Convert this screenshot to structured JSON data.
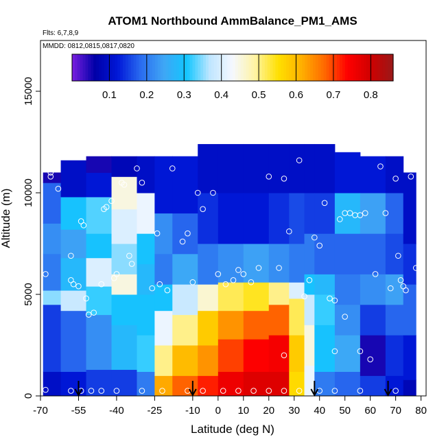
{
  "chart_data": {
    "type": "heatmap",
    "title": "ATOM1 Northbound AmmBalance_PM1_AMS",
    "flights_note": "Flts: 6,7,8,9",
    "dates_note": "MMDD: 0812,0815,0817,0820",
    "xlabel": "Latitude (deg N)",
    "ylabel": "Altitude (m)",
    "xlim": [
      -70,
      82
    ],
    "ylim": [
      0,
      17500
    ],
    "x_ticks": [
      -70,
      -55,
      -40,
      -25,
      -10,
      0,
      10,
      20,
      30,
      40,
      50,
      60,
      70,
      80
    ],
    "x_tick_labels": [
      "-70",
      "-55",
      "-40",
      "-25",
      "-10",
      "0",
      "10",
      "20",
      "30",
      "40",
      "50",
      "60",
      "70",
      "80"
    ],
    "y_ticks": [
      0,
      5000,
      10000,
      15000
    ],
    "y_tick_labels": [
      "0",
      "5000",
      "10000",
      "15000"
    ],
    "colorbar": {
      "range": [
        0,
        0.86
      ],
      "ticks": [
        0.1,
        0.2,
        0.3,
        0.4,
        0.5,
        0.6,
        0.7,
        0.8
      ],
      "tick_labels": [
        "0.1",
        "0.2",
        "0.3",
        "0.4",
        "0.5",
        "0.6",
        "0.7",
        "0.8"
      ],
      "colors": [
        "#7a1fe0",
        "#0000a8",
        "#0018d8",
        "#2a6cf0",
        "#3fa6f5",
        "#12c6ff",
        "#bfe6ff",
        "#f5f8ff",
        "#fff3a0",
        "#ffe000",
        "#ffb000",
        "#ff6a00",
        "#ff0000",
        "#d00000",
        "#9a1818"
      ]
    },
    "grid": false,
    "profile_latitudes": [
      -55,
      -10,
      38,
      67
    ],
    "data_columns": [
      {
        "lat0": -69,
        "lat1": -62,
        "ztop": 11000,
        "bands": [
          [
            0,
            1200,
            0.1
          ],
          [
            1200,
            4500,
            0.15
          ],
          [
            4500,
            5200,
            0.35
          ],
          [
            5200,
            7000,
            0.2
          ],
          [
            7000,
            8500,
            0.22
          ],
          [
            8500,
            10500,
            0.18
          ],
          [
            10500,
            11000,
            0.05
          ]
        ]
      },
      {
        "lat0": -62,
        "lat1": -52,
        "ztop": 11600,
        "bands": [
          [
            0,
            1200,
            0.12
          ],
          [
            1200,
            4200,
            0.18
          ],
          [
            4200,
            5200,
            0.38
          ],
          [
            5200,
            6800,
            0.28
          ],
          [
            6800,
            8200,
            0.24
          ],
          [
            8200,
            9800,
            0.3
          ],
          [
            9800,
            11600,
            0.1
          ]
        ]
      },
      {
        "lat0": -52,
        "lat1": -42,
        "ztop": 11800,
        "bands": [
          [
            0,
            1300,
            0.15
          ],
          [
            1300,
            4000,
            0.22
          ],
          [
            4000,
            5400,
            0.32
          ],
          [
            5400,
            6800,
            0.4
          ],
          [
            6800,
            8000,
            0.3
          ],
          [
            8000,
            9800,
            0.33
          ],
          [
            9800,
            11000,
            0.12
          ],
          [
            11000,
            11800,
            0.05
          ]
        ]
      },
      {
        "lat0": -42,
        "lat1": -32,
        "ztop": 11800,
        "bands": [
          [
            0,
            1300,
            0.15
          ],
          [
            1300,
            3500,
            0.28
          ],
          [
            3500,
            5000,
            0.3
          ],
          [
            5000,
            6000,
            0.45
          ],
          [
            6000,
            7500,
            0.35
          ],
          [
            7500,
            9200,
            0.4
          ],
          [
            9200,
            10800,
            0.45
          ],
          [
            10800,
            11800,
            0.08
          ]
        ]
      },
      {
        "lat0": -32,
        "lat1": -25,
        "ztop": 11800,
        "bands": [
          [
            0,
            1200,
            0.2
          ],
          [
            1200,
            3000,
            0.32
          ],
          [
            3000,
            5000,
            0.3
          ],
          [
            5000,
            6500,
            0.28
          ],
          [
            6500,
            8000,
            0.3
          ],
          [
            8000,
            10000,
            0.42
          ],
          [
            10000,
            11800,
            0.1
          ]
        ]
      },
      {
        "lat0": -25,
        "lat1": -18,
        "ztop": 11800,
        "bands": [
          [
            0,
            1000,
            0.62
          ],
          [
            1000,
            2500,
            0.5
          ],
          [
            2500,
            4200,
            0.42
          ],
          [
            4200,
            5500,
            0.3
          ],
          [
            5500,
            7000,
            0.2
          ],
          [
            7000,
            9000,
            0.22
          ],
          [
            9000,
            11800,
            0.12
          ]
        ]
      },
      {
        "lat0": -18,
        "lat1": -8,
        "ztop": 11800,
        "bands": [
          [
            0,
            1000,
            0.68
          ],
          [
            1000,
            2500,
            0.6
          ],
          [
            2500,
            4000,
            0.5
          ],
          [
            4000,
            5500,
            0.38
          ],
          [
            5500,
            7000,
            0.25
          ],
          [
            7000,
            9000,
            0.18
          ],
          [
            9000,
            11800,
            0.12
          ]
        ]
      },
      {
        "lat0": -8,
        "lat1": 0,
        "ztop": 12400,
        "bands": [
          [
            0,
            1000,
            0.72
          ],
          [
            1000,
            2500,
            0.64
          ],
          [
            2500,
            4200,
            0.58
          ],
          [
            4200,
            5500,
            0.46
          ],
          [
            5500,
            7500,
            0.2
          ],
          [
            7500,
            10000,
            0.14
          ],
          [
            10000,
            12400,
            0.1
          ]
        ]
      },
      {
        "lat0": 0,
        "lat1": 10,
        "ztop": 12400,
        "bands": [
          [
            0,
            1200,
            0.76
          ],
          [
            1200,
            2800,
            0.7
          ],
          [
            2800,
            4200,
            0.64
          ],
          [
            4200,
            5600,
            0.52
          ],
          [
            5600,
            7500,
            0.22
          ],
          [
            7500,
            10000,
            0.12
          ],
          [
            10000,
            12400,
            0.1
          ]
        ]
      },
      {
        "lat0": 10,
        "lat1": 20,
        "ztop": 12400,
        "bands": [
          [
            0,
            1200,
            0.78
          ],
          [
            1200,
            2800,
            0.74
          ],
          [
            2800,
            4200,
            0.68
          ],
          [
            4200,
            5600,
            0.54
          ],
          [
            5600,
            7500,
            0.24
          ],
          [
            7500,
            10000,
            0.12
          ],
          [
            10000,
            12400,
            0.1
          ]
        ]
      },
      {
        "lat0": 20,
        "lat1": 28,
        "ztop": 12400,
        "bands": [
          [
            0,
            1200,
            0.78
          ],
          [
            1200,
            3000,
            0.75
          ],
          [
            3000,
            4500,
            0.68
          ],
          [
            4500,
            5600,
            0.5
          ],
          [
            5600,
            7500,
            0.22
          ],
          [
            7500,
            10000,
            0.14
          ],
          [
            10000,
            12400,
            0.1
          ]
        ]
      },
      {
        "lat0": 28,
        "lat1": 34,
        "ztop": 12400,
        "bands": [
          [
            0,
            1200,
            0.56
          ],
          [
            1200,
            3000,
            0.58
          ],
          [
            3000,
            4800,
            0.52
          ],
          [
            4800,
            5600,
            0.4
          ],
          [
            5600,
            7500,
            0.2
          ],
          [
            7500,
            10000,
            0.16
          ],
          [
            10000,
            12400,
            0.1
          ]
        ]
      },
      {
        "lat0": 34,
        "lat1": 38,
        "ztop": 12400,
        "bands": [
          [
            0,
            1500,
            0.42
          ],
          [
            1500,
            3500,
            0.45
          ],
          [
            3500,
            5000,
            0.38
          ],
          [
            5000,
            6000,
            0.3
          ],
          [
            6000,
            8000,
            0.2
          ],
          [
            8000,
            10000,
            0.15
          ],
          [
            10000,
            12400,
            0.1
          ]
        ]
      },
      {
        "lat0": 38,
        "lat1": 46,
        "ztop": 12400,
        "bands": [
          [
            0,
            1200,
            0.2
          ],
          [
            1200,
            3500,
            0.3
          ],
          [
            3500,
            5000,
            0.32
          ],
          [
            5000,
            6000,
            0.28
          ],
          [
            6000,
            8000,
            0.18
          ],
          [
            8000,
            10000,
            0.15
          ],
          [
            10000,
            12400,
            0.1
          ]
        ]
      },
      {
        "lat0": 46,
        "lat1": 56,
        "ztop": 12000,
        "bands": [
          [
            0,
            1200,
            0.18
          ],
          [
            1200,
            3000,
            0.25
          ],
          [
            3000,
            4500,
            0.22
          ],
          [
            4500,
            6000,
            0.2
          ],
          [
            6000,
            8000,
            0.18
          ],
          [
            8000,
            10000,
            0.28
          ],
          [
            10000,
            12000,
            0.12
          ]
        ]
      },
      {
        "lat0": 56,
        "lat1": 66,
        "ztop": 11800,
        "bands": [
          [
            0,
            1000,
            0.15
          ],
          [
            1000,
            3000,
            0.05
          ],
          [
            3000,
            4500,
            0.15
          ],
          [
            4500,
            6000,
            0.22
          ],
          [
            6000,
            8000,
            0.18
          ],
          [
            8000,
            10000,
            0.24
          ],
          [
            10000,
            11800,
            0.12
          ]
        ]
      },
      {
        "lat0": 66,
        "lat1": 73,
        "ztop": 11800,
        "bands": [
          [
            0,
            1000,
            0.12
          ],
          [
            1000,
            3000,
            0.14
          ],
          [
            3000,
            4500,
            0.18
          ],
          [
            4500,
            6000,
            0.24
          ],
          [
            6000,
            8000,
            0.16
          ],
          [
            8000,
            10000,
            0.18
          ],
          [
            10000,
            11800,
            0.1
          ]
        ]
      },
      {
        "lat0": 73,
        "lat1": 78,
        "ztop": 11000,
        "bands": [
          [
            0,
            800,
            0.08
          ],
          [
            800,
            3000,
            0.12
          ],
          [
            3000,
            5500,
            0.18
          ],
          [
            5500,
            7500,
            0.14
          ],
          [
            7500,
            11000,
            0.1
          ]
        ]
      }
    ],
    "overlay_points": [
      [
        -68,
        6000
      ],
      [
        -66,
        11000
      ],
      [
        -64,
        11300
      ],
      [
        -58,
        6900
      ],
      [
        -58,
        5700
      ],
      [
        -57,
        5500
      ],
      [
        -55,
        5400
      ],
      [
        -54,
        8600
      ],
      [
        -53,
        8400
      ],
      [
        -52,
        4800
      ],
      [
        -51,
        4000
      ],
      [
        -49,
        4100
      ],
      [
        -46,
        5500
      ],
      [
        -45,
        9200
      ],
      [
        -44,
        9300
      ],
      [
        -42,
        9600
      ],
      [
        -41,
        5800
      ],
      [
        -40,
        6000
      ],
      [
        -38,
        10500
      ],
      [
        -37,
        10400
      ],
      [
        -35,
        6900
      ],
      [
        -34,
        6500
      ],
      [
        -32,
        11200
      ],
      [
        -30,
        10500
      ],
      [
        -26,
        5300
      ],
      [
        -24,
        8000
      ],
      [
        -23,
        5500
      ],
      [
        -20,
        5200
      ],
      [
        -18,
        11200
      ],
      [
        -16,
        12100
      ],
      [
        -14,
        7600
      ],
      [
        -12,
        8000
      ],
      [
        -10,
        5600
      ],
      [
        -8,
        10000
      ],
      [
        -6,
        9200
      ],
      [
        -2,
        10000
      ],
      [
        0,
        6000
      ],
      [
        3,
        5500
      ],
      [
        6,
        5700
      ],
      [
        8,
        6200
      ],
      [
        10,
        6000
      ],
      [
        13,
        5600
      ],
      [
        16,
        6300
      ],
      [
        20,
        10800
      ],
      [
        24,
        6300
      ],
      [
        26,
        10700
      ],
      [
        28,
        8100
      ],
      [
        32,
        11600
      ],
      [
        34,
        4900
      ],
      [
        36,
        5700
      ],
      [
        38,
        7800
      ],
      [
        40,
        7400
      ],
      [
        42,
        9500
      ],
      [
        44,
        4800
      ],
      [
        46,
        4700
      ],
      [
        48,
        8700
      ],
      [
        50,
        9000
      ],
      [
        52,
        9000
      ],
      [
        54,
        8900
      ],
      [
        56,
        8900
      ],
      [
        58,
        9000
      ],
      [
        62,
        6000
      ],
      [
        64,
        11300
      ],
      [
        66,
        9000
      ],
      [
        68,
        5300
      ],
      [
        70,
        10700
      ],
      [
        71,
        6900
      ],
      [
        72,
        5700
      ],
      [
        73,
        5400
      ],
      [
        74,
        5200
      ],
      [
        75,
        12000
      ],
      [
        76,
        10800
      ],
      [
        78,
        6300
      ],
      [
        60,
        1800
      ],
      [
        56,
        2200
      ],
      [
        50,
        3900
      ],
      [
        46,
        2200
      ],
      [
        26,
        2000
      ],
      [
        -58,
        250
      ],
      [
        -54,
        250
      ],
      [
        -50,
        250
      ],
      [
        -46,
        250
      ],
      [
        -40,
        250
      ],
      [
        -30,
        250
      ],
      [
        -22,
        250
      ],
      [
        -12,
        250
      ],
      [
        -6,
        250
      ],
      [
        2,
        250
      ],
      [
        8,
        250
      ],
      [
        14,
        250
      ],
      [
        20,
        250
      ],
      [
        26,
        250
      ],
      [
        32,
        250
      ],
      [
        40,
        250
      ],
      [
        46,
        250
      ],
      [
        56,
        250
      ],
      [
        70,
        250
      ],
      [
        -68,
        300
      ],
      [
        -66,
        10800
      ],
      [
        -63,
        10200
      ]
    ]
  }
}
